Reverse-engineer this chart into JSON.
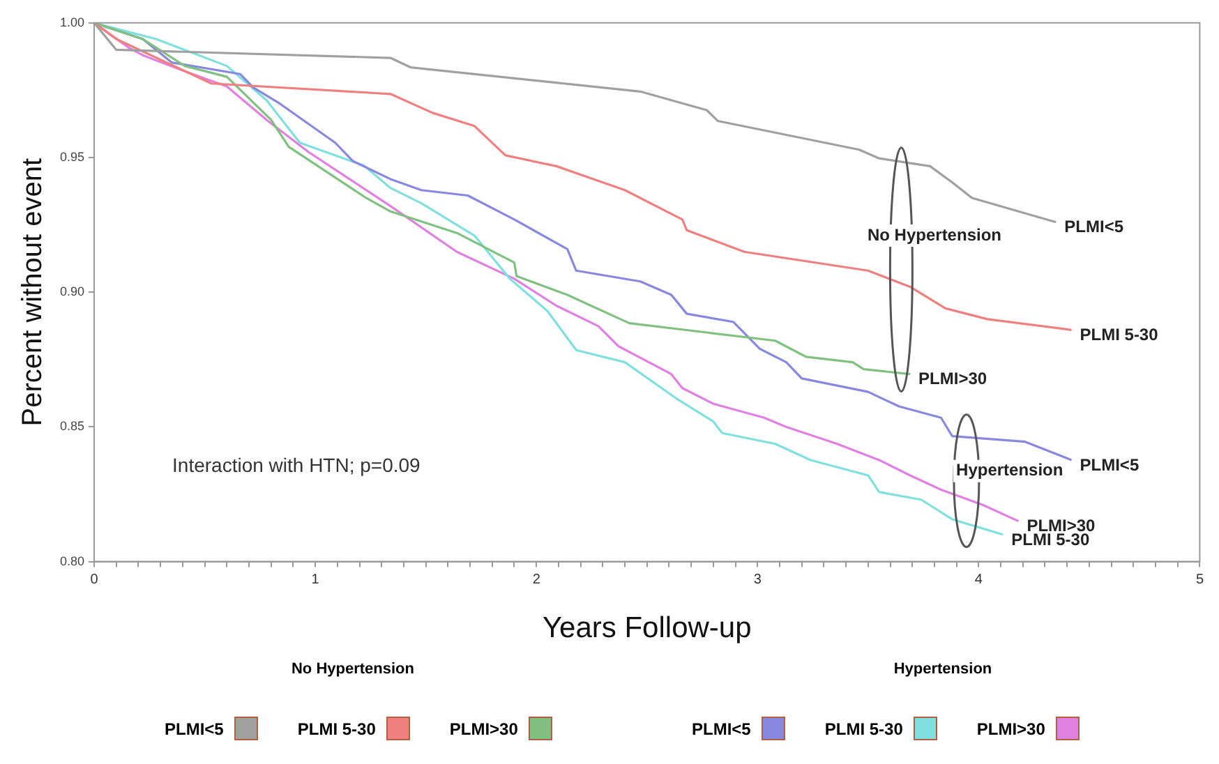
{
  "chart_data": {
    "type": "line",
    "xlabel": "Years Follow-up",
    "ylabel": "Percent without event",
    "xlim": [
      0,
      5
    ],
    "ylim": [
      0.8,
      1.0
    ],
    "xticks": [
      0,
      {
        "value": 0.1,
        "label": null
      },
      {
        "value": 0.2,
        "label": null
      },
      {
        "value": 0.3,
        "label": null
      },
      {
        "value": 0.4,
        "label": null
      },
      {
        "value": 0.5,
        "label": null
      },
      {
        "value": 0.6,
        "label": null
      },
      {
        "value": 0.7,
        "label": null
      },
      {
        "value": 0.8,
        "label": null
      },
      {
        "value": 0.9,
        "label": null
      },
      1,
      {
        "value": 1.1,
        "label": null
      },
      {
        "value": 1.2,
        "label": null
      },
      {
        "value": 1.3,
        "label": null
      },
      {
        "value": 1.4,
        "label": null
      },
      {
        "value": 1.5,
        "label": null
      },
      {
        "value": 1.6,
        "label": null
      },
      {
        "value": 1.7,
        "label": null
      },
      {
        "value": 1.8,
        "label": null
      },
      {
        "value": 1.9,
        "label": null
      },
      2,
      {
        "value": 2.1,
        "label": null
      },
      {
        "value": 2.2,
        "label": null
      },
      {
        "value": 2.3,
        "label": null
      },
      {
        "value": 2.4,
        "label": null
      },
      {
        "value": 2.5,
        "label": null
      },
      {
        "value": 2.6,
        "label": null
      },
      {
        "value": 2.7,
        "label": null
      },
      {
        "value": 2.8,
        "label": null
      },
      {
        "value": 2.9,
        "label": null
      },
      3,
      {
        "value": 3.1,
        "label": null
      },
      {
        "value": 3.2,
        "label": null
      },
      {
        "value": 3.3,
        "label": null
      },
      {
        "value": 3.4,
        "label": null
      },
      {
        "value": 3.5,
        "label": null
      },
      {
        "value": 3.6,
        "label": null
      },
      {
        "value": 3.7,
        "label": null
      },
      {
        "value": 3.8,
        "label": null
      },
      {
        "value": 3.9,
        "label": null
      },
      4,
      {
        "value": 4.1,
        "label": null
      },
      {
        "value": 4.2,
        "label": null
      },
      {
        "value": 4.3,
        "label": null
      },
      {
        "value": 4.4,
        "label": null
      },
      {
        "value": 4.5,
        "label": null
      },
      {
        "value": 4.6,
        "label": null
      },
      {
        "value": 4.7,
        "label": null
      },
      {
        "value": 4.8,
        "label": null
      },
      {
        "value": 4.9,
        "label": null
      },
      5
    ],
    "yticks": [
      {
        "value": 0.8,
        "label": "0.80"
      },
      {
        "value": 0.85,
        "label": "0.85"
      },
      {
        "value": 0.9,
        "label": "0.90"
      },
      {
        "value": 0.95,
        "label": "0.95"
      },
      {
        "value": 1.0,
        "label": "1.00"
      }
    ],
    "grid": false,
    "legend": "bottom",
    "marker": "none",
    "line_style": "solid",
    "annotations": [
      "Interaction with HTN; p=0.09",
      "No Hypertension",
      "Hypertension",
      "No Hypertension",
      "Hypertension"
    ],
    "series": [
      {
        "name": "PLMI<5",
        "color": "#a0a0a0",
        "x": [
          0,
          0.1,
          1.34,
          1.43,
          2.47,
          2.77,
          2.82,
          3.46,
          3.55,
          3.78,
          3.88,
          3.97,
          4.35
        ],
        "values": [
          1.0,
          0.99,
          0.987,
          0.9835,
          0.9745,
          0.9676,
          0.9636,
          0.9529,
          0.9497,
          0.9468,
          0.9408,
          0.935,
          0.926
        ]
      },
      {
        "name": "PLMI 5-30",
        "color": "#f08080",
        "x": [
          0,
          0.1,
          0.53,
          1.34,
          1.53,
          1.72,
          1.86,
          2.09,
          2.4,
          2.66,
          2.68,
          2.94,
          3.5,
          3.69,
          3.85,
          4.04,
          4.42
        ],
        "values": [
          1.0,
          0.994,
          0.9775,
          0.9736,
          0.9666,
          0.9617,
          0.9508,
          0.9468,
          0.9379,
          0.927,
          0.923,
          0.915,
          0.908,
          0.902,
          0.894,
          0.89,
          0.886
        ]
      },
      {
        "name": "PLMI>30",
        "color": "#80c080",
        "x": [
          0,
          0.22,
          0.41,
          0.6,
          0.8,
          0.88,
          1.23,
          1.34,
          1.64,
          1.9,
          1.91,
          2.14,
          2.42,
          3.08,
          3.22,
          3.43,
          3.48,
          3.69
        ],
        "values": [
          1.0,
          0.994,
          0.984,
          0.98,
          0.964,
          0.954,
          0.935,
          0.93,
          0.922,
          0.911,
          0.906,
          0.899,
          0.8885,
          0.882,
          0.876,
          0.874,
          0.8714,
          0.8696
        ]
      },
      {
        "name": "PLMI<5",
        "color": "#8888e0",
        "x": [
          0,
          0.22,
          0.35,
          0.66,
          0.72,
          0.84,
          1.09,
          1.17,
          1.34,
          1.48,
          1.69,
          1.9,
          2.14,
          2.18,
          2.47,
          2.61,
          2.68,
          2.89,
          3.01,
          3.13,
          3.2,
          3.5,
          3.64,
          3.83,
          3.88,
          4.21,
          4.42
        ],
        "values": [
          1.0,
          0.994,
          0.9853,
          0.981,
          0.976,
          0.97,
          0.9555,
          0.9487,
          0.942,
          0.9379,
          0.9359,
          0.927,
          0.916,
          0.908,
          0.904,
          0.899,
          0.892,
          0.889,
          0.879,
          0.874,
          0.868,
          0.863,
          0.8576,
          0.8534,
          0.8466,
          0.8445,
          0.8377
        ]
      },
      {
        "name": "PLMI 5-30",
        "color": "#80e0e0",
        "x": [
          0,
          0.28,
          0.6,
          0.78,
          0.93,
          1.22,
          1.34,
          1.48,
          1.72,
          1.88,
          2.05,
          2.18,
          2.4,
          2.63,
          2.8,
          2.84,
          3.08,
          3.24,
          3.5,
          3.55,
          3.74,
          3.88,
          4.11
        ],
        "values": [
          1.0,
          0.994,
          0.984,
          0.9712,
          0.9555,
          0.947,
          0.9387,
          0.933,
          0.921,
          0.905,
          0.893,
          0.8785,
          0.874,
          0.8607,
          0.852,
          0.8477,
          0.8437,
          0.8377,
          0.832,
          0.8258,
          0.823,
          0.8157,
          0.81
        ]
      },
      {
        "name": "PLMI>30",
        "color": "#e080e0",
        "x": [
          0,
          0.16,
          0.22,
          0.41,
          0.6,
          0.78,
          0.97,
          1.34,
          1.64,
          1.9,
          2.09,
          2.28,
          2.37,
          2.61,
          2.66,
          2.8,
          3.03,
          3.13,
          3.36,
          3.55,
          3.69,
          3.83,
          4.02,
          4.18
        ],
        "values": [
          1.0,
          0.9906,
          0.988,
          0.982,
          0.9764,
          0.964,
          0.952,
          0.932,
          0.915,
          0.905,
          0.895,
          0.8874,
          0.88,
          0.8696,
          0.8644,
          0.8586,
          0.8534,
          0.85,
          0.8437,
          0.8377,
          0.832,
          0.8267,
          0.821,
          0.815
        ]
      }
    ]
  }
}
